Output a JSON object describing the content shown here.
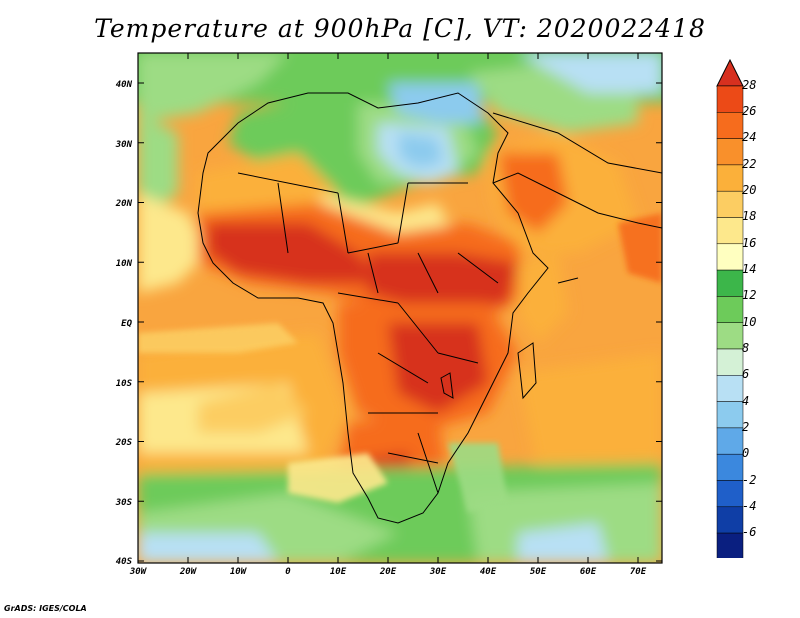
{
  "title": "Temperature at 900hPa [C], VT: 2020022418",
  "footer": "GrADS: IGES/COLA",
  "map": {
    "lon_range": [
      -30,
      75
    ],
    "lat_range": [
      -40,
      45
    ],
    "lon_ticks": [
      "30W",
      "20W",
      "10W",
      "0",
      "10E",
      "20E",
      "30E",
      "40E",
      "50E",
      "60E",
      "70E"
    ],
    "lat_ticks": [
      "40N",
      "30N",
      "20N",
      "10N",
      "EQ",
      "10S",
      "20S",
      "30S",
      "40S"
    ]
  },
  "colorbar": {
    "labels": [
      "28",
      "26",
      "24",
      "22",
      "20",
      "18",
      "16",
      "14",
      "12",
      "10",
      "8",
      "6",
      "4",
      "2",
      "0",
      "-2",
      "-4",
      "-6"
    ],
    "colors": [
      "#d7301f",
      "#ec4a17",
      "#f66c1d",
      "#f9902b",
      "#fbb03a",
      "#fccd62",
      "#fde88c",
      "#ffffc0",
      "#3cb64a",
      "#6dcb5a",
      "#9ddc84",
      "#d4f1d6",
      "#b8e0f4",
      "#8ccbee",
      "#5fa9e8",
      "#3b88de",
      "#1f5fc9",
      "#0f3ea6",
      "#0a1f80",
      "#e0e0ff"
    ]
  },
  "colors": {
    "ocean_warm": "#f5a44a",
    "ocean_cool": "#fde88c",
    "cold_north": "#6dcb5a",
    "hot_core": "#d7301f",
    "coastline": "#000000"
  }
}
